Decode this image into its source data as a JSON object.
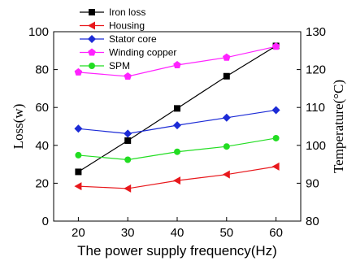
{
  "chart_data": {
    "type": "line",
    "xlabel": "The power supply frequency(Hz)",
    "ylabel_left": "Loss(w)",
    "ylabel_right": "Temperature(°C)",
    "x": [
      20,
      30,
      40,
      50,
      60
    ],
    "xlim": [
      15,
      65
    ],
    "ylim_left": [
      0,
      100
    ],
    "ylim_right": [
      80,
      130
    ],
    "xticks": [
      "20",
      "30",
      "40",
      "50",
      "60"
    ],
    "yticks_left": [
      "0",
      "20",
      "40",
      "60",
      "80",
      "100"
    ],
    "yticks_right": [
      "80",
      "90",
      "100",
      "110",
      "120",
      "130"
    ],
    "legend_position": "top-left",
    "grid": false,
    "series": [
      {
        "name": "Iron loss",
        "axis": "left",
        "color": "#000000",
        "marker": "square",
        "values": [
          26,
          42.5,
          59.5,
          76.5,
          92.5
        ]
      },
      {
        "name": "Housing",
        "axis": "right",
        "color": "#e8181c",
        "marker": "triangle-left",
        "values": [
          89.2,
          88.6,
          90.7,
          92.3,
          94.4
        ]
      },
      {
        "name": "Stator core",
        "axis": "right",
        "color": "#1c2bd6",
        "marker": "diamond",
        "values": [
          104.4,
          103.1,
          105.3,
          107.3,
          109.3
        ]
      },
      {
        "name": "Winding copper",
        "axis": "right",
        "color": "#ff22ff",
        "marker": "pentagon",
        "values": [
          119.3,
          118.2,
          121.2,
          123.2,
          126.1
        ]
      },
      {
        "name": "SPM",
        "axis": "right",
        "color": "#22dd22",
        "marker": "circle",
        "values": [
          97.4,
          96.2,
          98.3,
          99.7,
          101.9
        ]
      }
    ]
  }
}
